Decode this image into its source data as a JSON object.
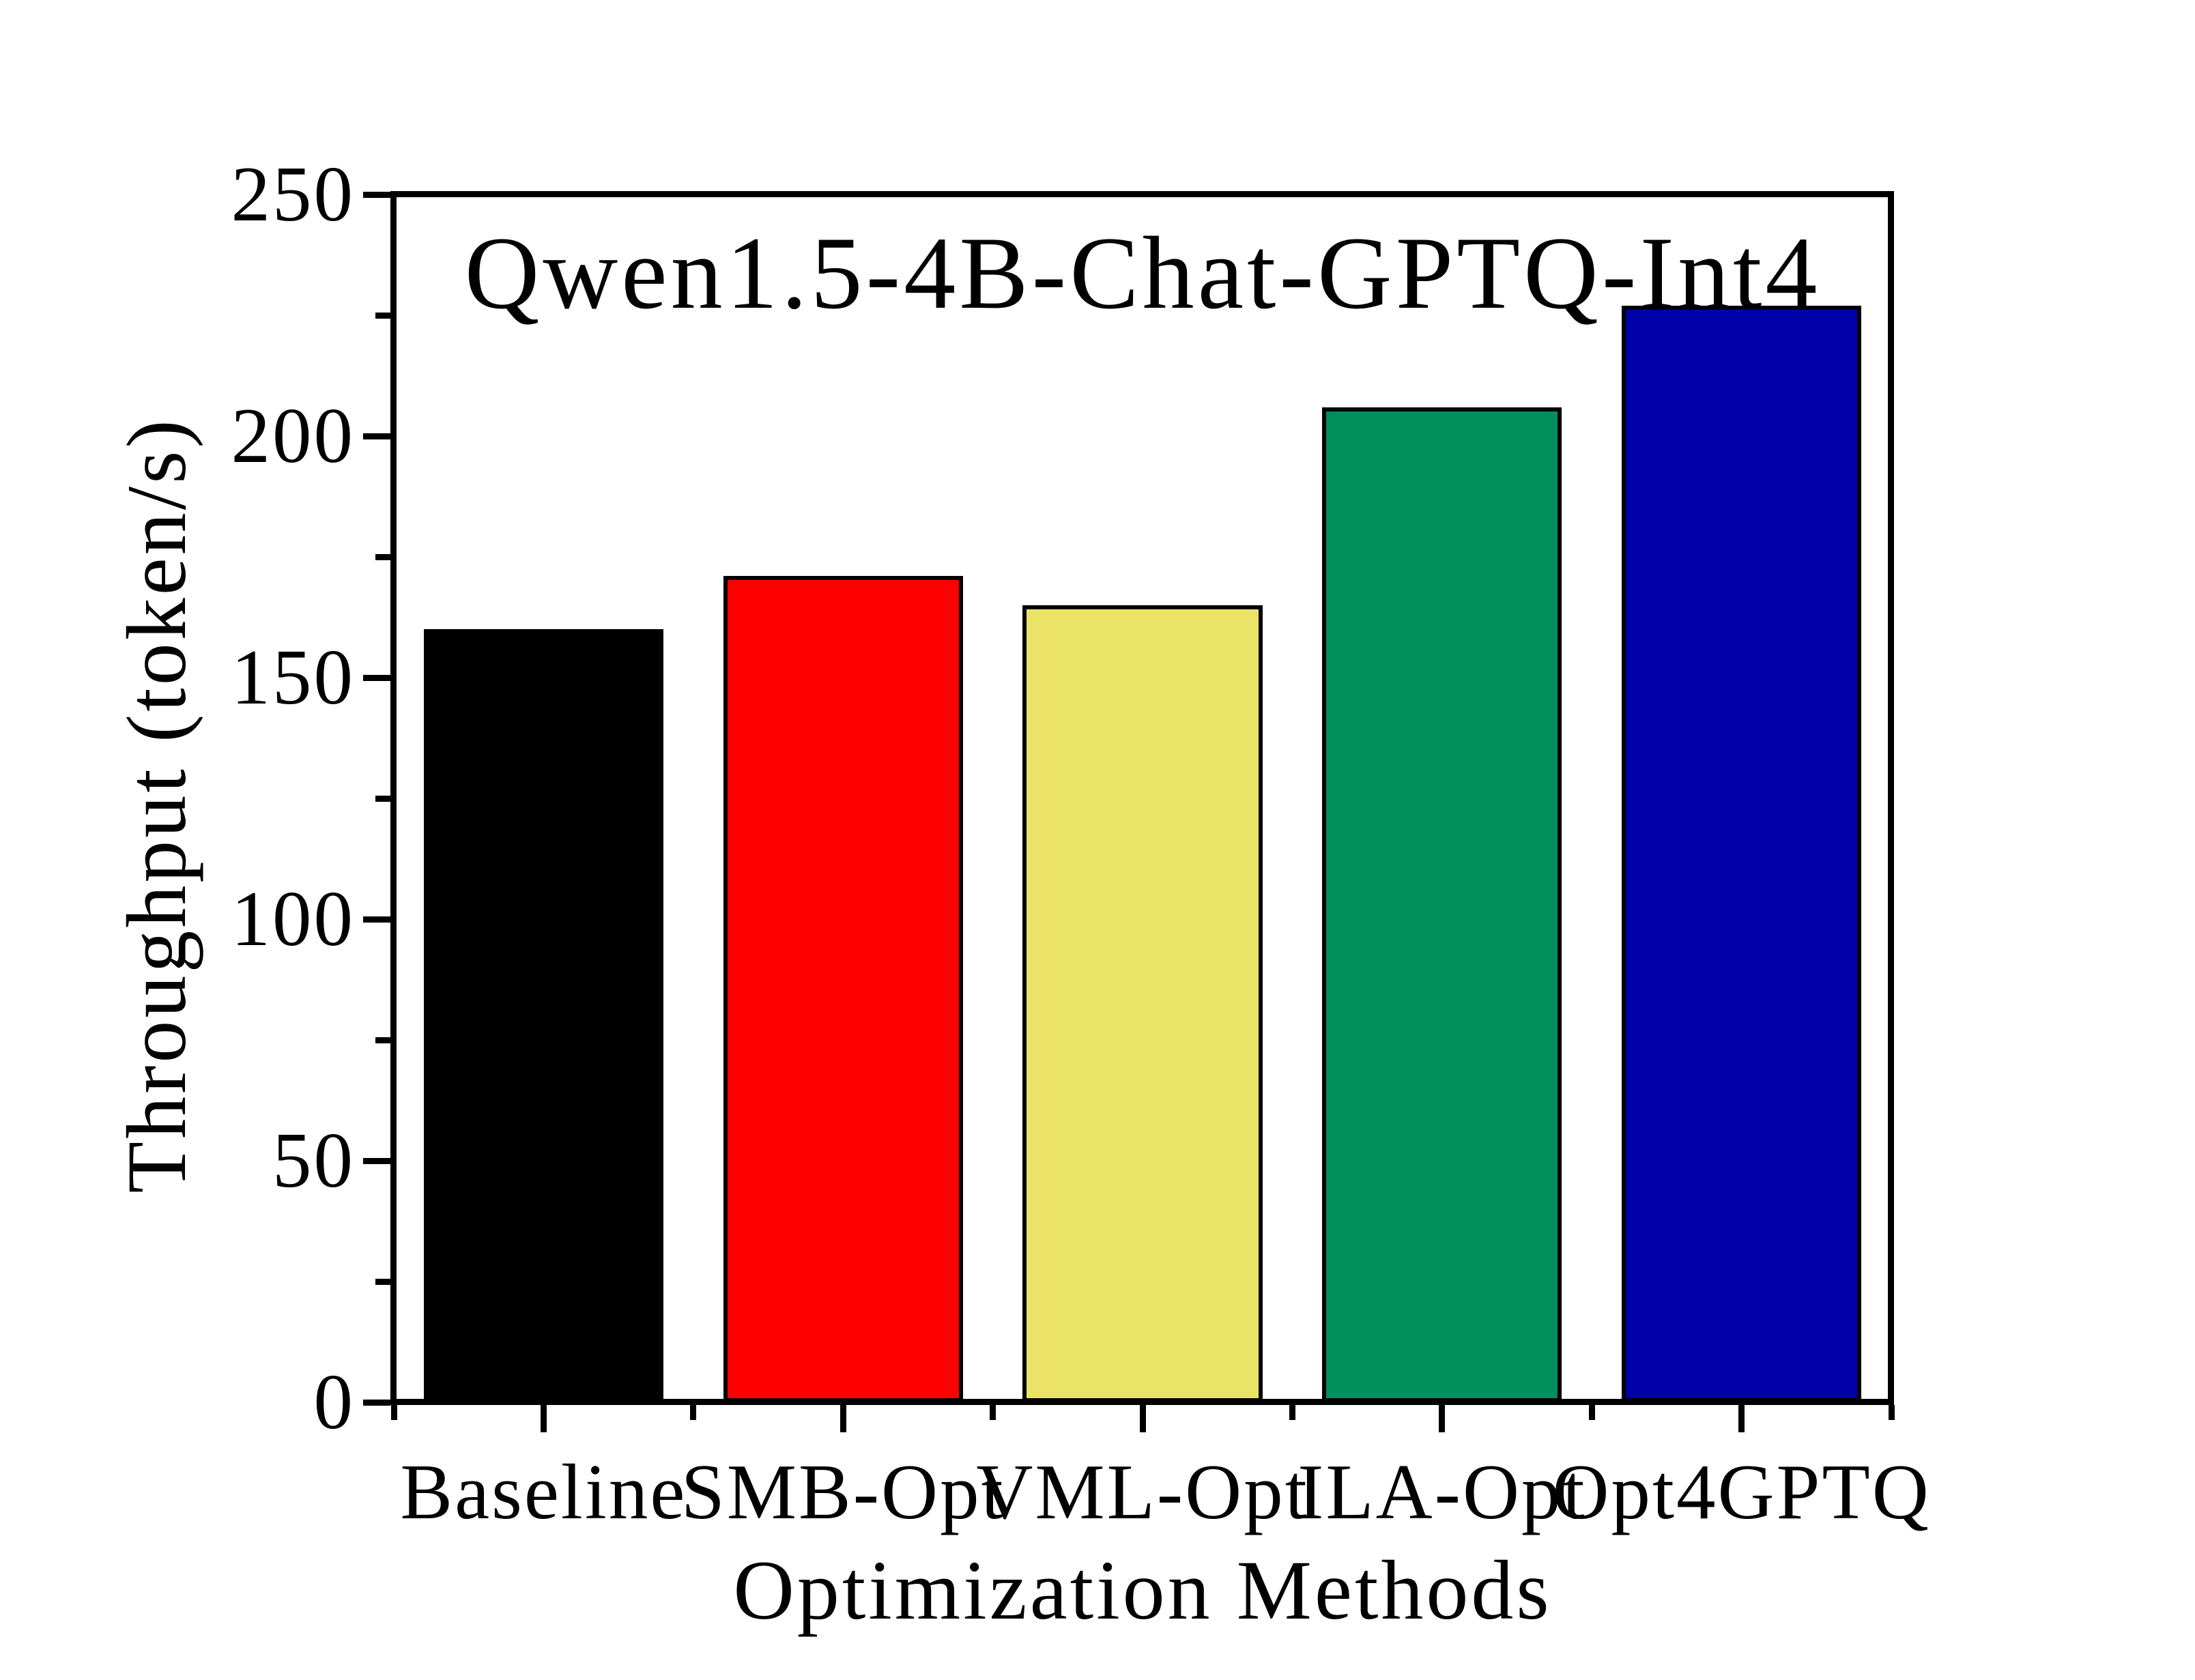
{
  "figure": {
    "background": "#ffffff",
    "axis_color": "#000000"
  },
  "chart_data": {
    "type": "bar",
    "title": "Qwen1.5-4B-Chat-GPTQ-Int4",
    "xlabel": "Optimization Methods",
    "ylabel": "Throughput (token/s)",
    "categories": [
      "Baseline",
      "SMB-Opt",
      "VML-Opt",
      "ILA-Opt",
      "Opt4GPTQ"
    ],
    "values": [
      160,
      171,
      165,
      206,
      227
    ],
    "bar_colors": [
      "#000000",
      "#ff0000",
      "#ebe368",
      "#00905e",
      "#0000a8"
    ],
    "bar_edge_color": "#000000",
    "bar_width_fraction": 0.8,
    "ylim": [
      0,
      250
    ],
    "y_major_tick_step": 50,
    "y_minor_tick_step": 25,
    "y_major_tick_labels": [
      "0",
      "50",
      "100",
      "150",
      "200",
      "250"
    ],
    "grid": false,
    "legend": "none"
  }
}
